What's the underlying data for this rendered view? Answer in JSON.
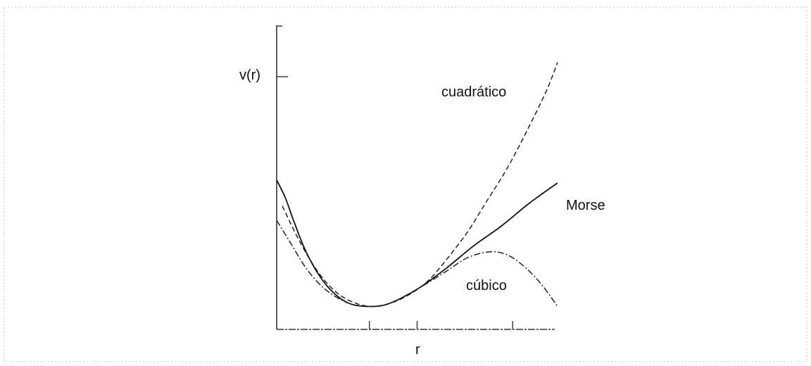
{
  "chart_data": {
    "type": "line",
    "title": "",
    "xlabel": "r",
    "ylabel": "v(r)",
    "grid": false,
    "legend": "none (series labeled directly on curves)",
    "xlim": [
      0,
      1
    ],
    "ylim": [
      0,
      1
    ],
    "x_ticks": [
      0.33,
      0.5,
      0.84
    ],
    "y_ticks": [
      0.88
    ],
    "series": [
      {
        "name": "cuadrático",
        "style": "dashed",
        "color": "#222222",
        "x": [
          0.02,
          0.08,
          0.14,
          0.2,
          0.26,
          0.33,
          0.4,
          0.47,
          0.54,
          0.61,
          0.68,
          0.75,
          0.82,
          0.89,
          0.96,
          1.0
        ],
        "y": [
          0.43,
          0.31,
          0.21,
          0.14,
          0.1,
          0.08,
          0.09,
          0.12,
          0.17,
          0.25,
          0.34,
          0.45,
          0.56,
          0.69,
          0.83,
          0.93
        ]
      },
      {
        "name": "Morse",
        "style": "solid",
        "color": "#111111",
        "x": [
          0.0,
          0.03,
          0.06,
          0.1,
          0.15,
          0.2,
          0.26,
          0.33,
          0.4,
          0.5,
          0.6,
          0.7,
          0.8,
          0.9,
          1.0
        ],
        "y": [
          0.52,
          0.46,
          0.38,
          0.28,
          0.19,
          0.13,
          0.09,
          0.08,
          0.09,
          0.14,
          0.21,
          0.29,
          0.36,
          0.44,
          0.51
        ]
      },
      {
        "name": "cúbico",
        "style": "dash-dot",
        "color": "#222222",
        "x": [
          0.0,
          0.05,
          0.1,
          0.15,
          0.2,
          0.26,
          0.33,
          0.4,
          0.5,
          0.6,
          0.68,
          0.76,
          0.82,
          0.88,
          0.94,
          1.0
        ],
        "y": [
          0.38,
          0.3,
          0.22,
          0.16,
          0.12,
          0.09,
          0.08,
          0.09,
          0.14,
          0.2,
          0.25,
          0.27,
          0.26,
          0.22,
          0.16,
          0.08
        ]
      }
    ]
  }
}
